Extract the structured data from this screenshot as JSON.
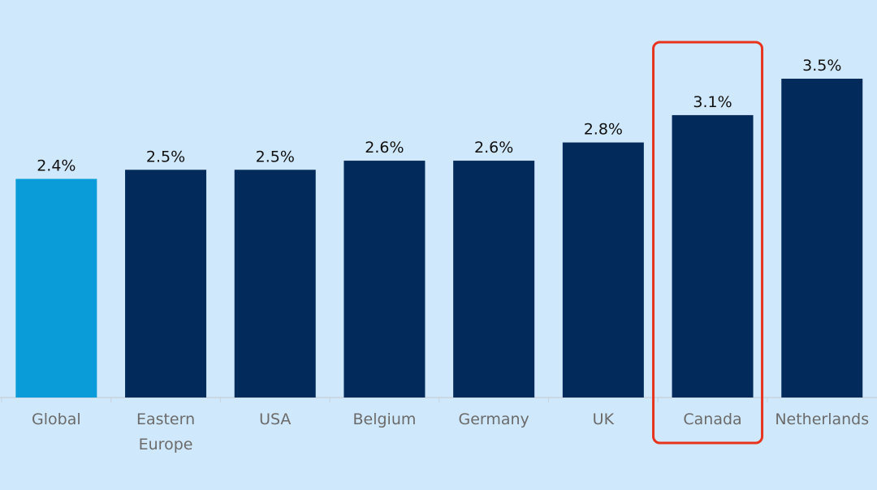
{
  "chart_data": {
    "type": "bar",
    "categories": [
      "Global",
      "Eastern Europe",
      "USA",
      "Belgium",
      "Germany",
      "UK",
      "Canada",
      "Netherlands"
    ],
    "values": [
      2.4,
      2.5,
      2.5,
      2.6,
      2.6,
      2.8,
      3.1,
      3.5
    ],
    "value_labels": [
      "2.4%",
      "2.5%",
      "2.5%",
      "2.6%",
      "2.6%",
      "2.8%",
      "3.1%",
      "3.5%"
    ],
    "colors": [
      "#0a9cd8",
      "#022b5c",
      "#022b5c",
      "#022b5c",
      "#022b5c",
      "#022b5c",
      "#022b5c",
      "#022b5c"
    ],
    "highlight_box": {
      "index": 6,
      "color": "#e8331f"
    }
  }
}
